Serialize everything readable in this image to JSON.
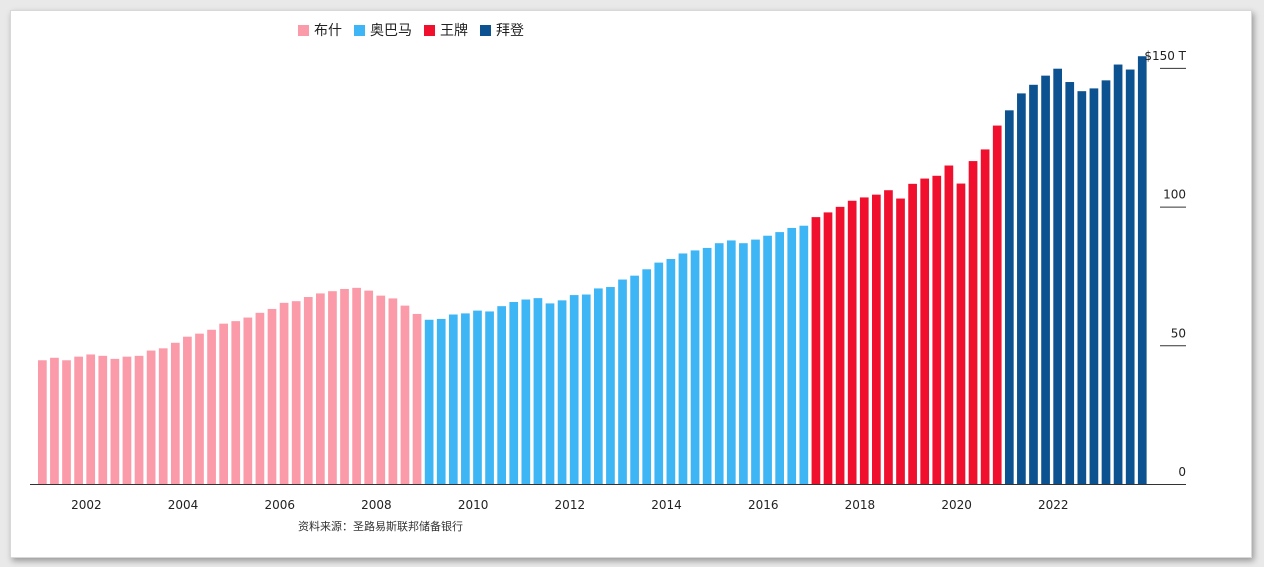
{
  "legend": [
    {
      "name": "布什",
      "color": "#fb9aa8"
    },
    {
      "name": "奥巴马",
      "color": "#3eb6f5"
    },
    {
      "name": "王牌",
      "color": "#f0102d"
    },
    {
      "name": "拜登",
      "color": "#0d5290"
    }
  ],
  "source": "资料来源：圣路易斯联邦储备银行",
  "chart_data": {
    "type": "bar",
    "title": "",
    "xlabel": "",
    "ylabel": "",
    "ylim": [
      0,
      155
    ],
    "y_ticks": [
      {
        "value": 0,
        "label": "0"
      },
      {
        "value": 50,
        "label": "50"
      },
      {
        "value": 100,
        "label": "100"
      },
      {
        "value": 150,
        "label": "$150 T"
      }
    ],
    "x_tick_labels": [
      "2002",
      "2004",
      "2006",
      "2008",
      "2010",
      "2012",
      "2014",
      "2016",
      "2018",
      "2020",
      "2022"
    ],
    "x_start": 2001.0,
    "quarters_per_year": 4,
    "series": [
      {
        "name": "布什",
        "color": "#fb9aa8",
        "values": [
          44.6,
          45.5,
          44.6,
          45.9,
          46.7,
          46.2,
          45.1,
          45.9,
          46.2,
          48.1,
          48.9,
          50.9,
          53.1,
          54.2,
          55.6,
          57.8,
          58.7,
          60.0,
          61.7,
          63.1,
          65.3,
          65.9,
          67.4,
          68.7,
          69.5,
          70.3,
          70.7,
          69.7,
          67.9,
          66.9,
          64.3,
          61.3
        ]
      },
      {
        "name": "奥巴马",
        "color": "#3eb6f5",
        "values": [
          59.2,
          59.5,
          61.1,
          61.5,
          62.5,
          62.2,
          64.1,
          65.6,
          66.5,
          67.0,
          65.1,
          66.2,
          68.1,
          68.3,
          70.5,
          71.0,
          73.7,
          75.1,
          77.4,
          79.8,
          81.1,
          83.1,
          84.2,
          85.1,
          86.8,
          87.8,
          86.8,
          88.1,
          89.5,
          90.8,
          92.3,
          93.1
        ]
      },
      {
        "name": "王牌",
        "color": "#f0102d",
        "values": [
          96.2,
          97.9,
          99.9,
          102.1,
          103.3,
          104.3,
          105.9,
          102.9,
          108.2,
          110.1,
          111.1,
          114.8,
          108.3,
          116.4,
          120.6,
          129.2
        ]
      },
      {
        "name": "拜登",
        "color": "#0d5290",
        "values": [
          134.7,
          140.8,
          143.9,
          147.2,
          149.7,
          144.9,
          141.6,
          142.6,
          145.5,
          151.2,
          149.4,
          154.2
        ]
      }
    ]
  }
}
